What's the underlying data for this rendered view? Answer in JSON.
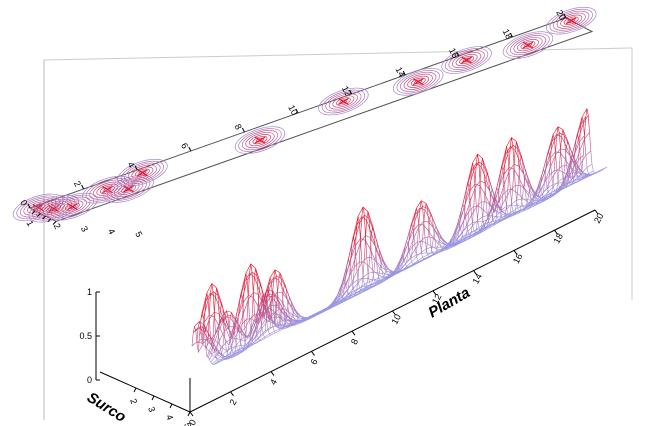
{
  "chart_data": {
    "type": "surface",
    "xlabel": "Planta",
    "ylabel": "Surco",
    "zlabel": "",
    "x_ticks": [
      "2",
      "4",
      "6",
      "8",
      "10",
      "12",
      "14",
      "16",
      "18",
      "20"
    ],
    "y_ticks": [
      "0",
      "1",
      "2",
      "3",
      "4",
      "5"
    ],
    "z_ticks": [
      "0",
      "0.5",
      "1"
    ],
    "contour_x_ticks": [
      "0",
      "2",
      "4",
      "6",
      "8",
      "10",
      "12",
      "14",
      "16",
      "18",
      "20"
    ],
    "contour_y_ticks": [
      "1",
      "2",
      "3",
      "4",
      "5"
    ],
    "xlim": [
      0,
      20
    ],
    "ylim": [
      0,
      5
    ],
    "zlim": [
      0,
      1
    ],
    "projection_contour": true,
    "wireframe_colors": {
      "high": "#e8102c",
      "low": "#9a9ae6"
    },
    "peaks": [
      {
        "planta": 0.2,
        "surco": 0.5,
        "value": 0.6
      },
      {
        "planta": 0.5,
        "surco": 2.0,
        "value": 0.95
      },
      {
        "planta": 1.0,
        "surco": 3.0,
        "value": 0.55
      },
      {
        "planta": 2.5,
        "surco": 2.0,
        "value": 0.95
      },
      {
        "planta": 3.0,
        "surco": 3.5,
        "value": 0.55
      },
      {
        "planta": 4.0,
        "surco": 1.0,
        "value": 0.75
      },
      {
        "planta": 8.0,
        "surco": 3.0,
        "value": 0.95
      },
      {
        "planta": 11.5,
        "surco": 1.0,
        "value": 0.7
      },
      {
        "planta": 14.0,
        "surco": 2.5,
        "value": 0.9
      },
      {
        "planta": 16.0,
        "surco": 1.5,
        "value": 0.9
      },
      {
        "planta": 18.0,
        "surco": 3.0,
        "value": 0.75
      },
      {
        "planta": 20.0,
        "surco": 1.0,
        "value": 0.8
      }
    ]
  }
}
